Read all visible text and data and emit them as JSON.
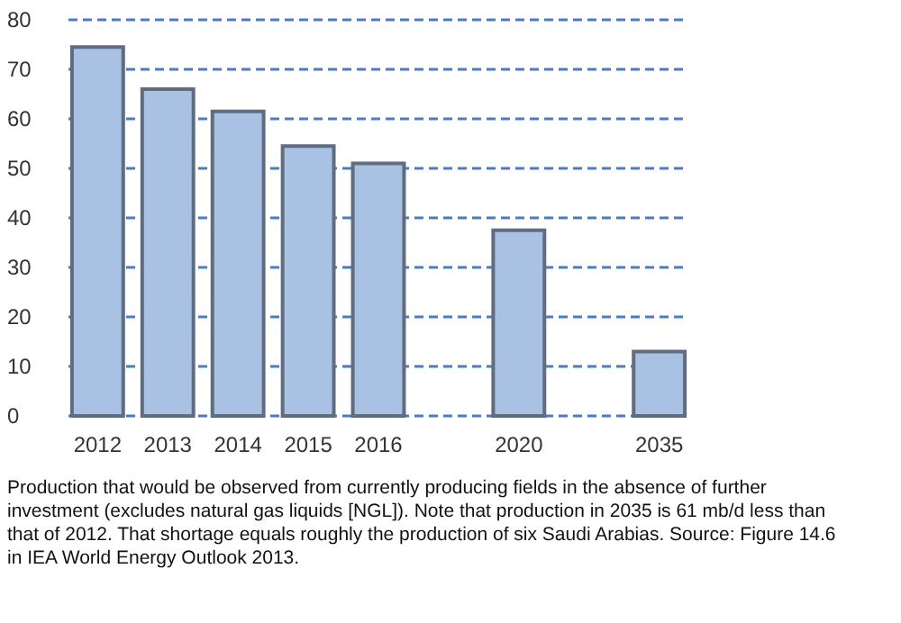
{
  "chart_data": {
    "type": "bar",
    "categories": [
      "2012",
      "2013",
      "2014",
      "2015",
      "2016",
      null,
      "2020",
      null,
      "2035"
    ],
    "values": [
      74.5,
      66,
      61.5,
      54.5,
      51,
      null,
      37.5,
      null,
      13
    ],
    "color": "#a9c1e3",
    "ylim": [
      0,
      80
    ],
    "yticks": [
      0,
      10,
      20,
      30,
      40,
      50,
      60,
      70,
      80
    ],
    "grid": "y",
    "annotations": [
      "Production that would be observed from currently producing fields in the absence of further investment (excludes natural gas liquids [NGL]). Note that production in 2035 is 61 mb/d less than that of 2012. That shortage equals roughly the production of six Saudi Arabias. Source: Figure 14.6 in IEA World Energy Outlook 2013."
    ]
  }
}
